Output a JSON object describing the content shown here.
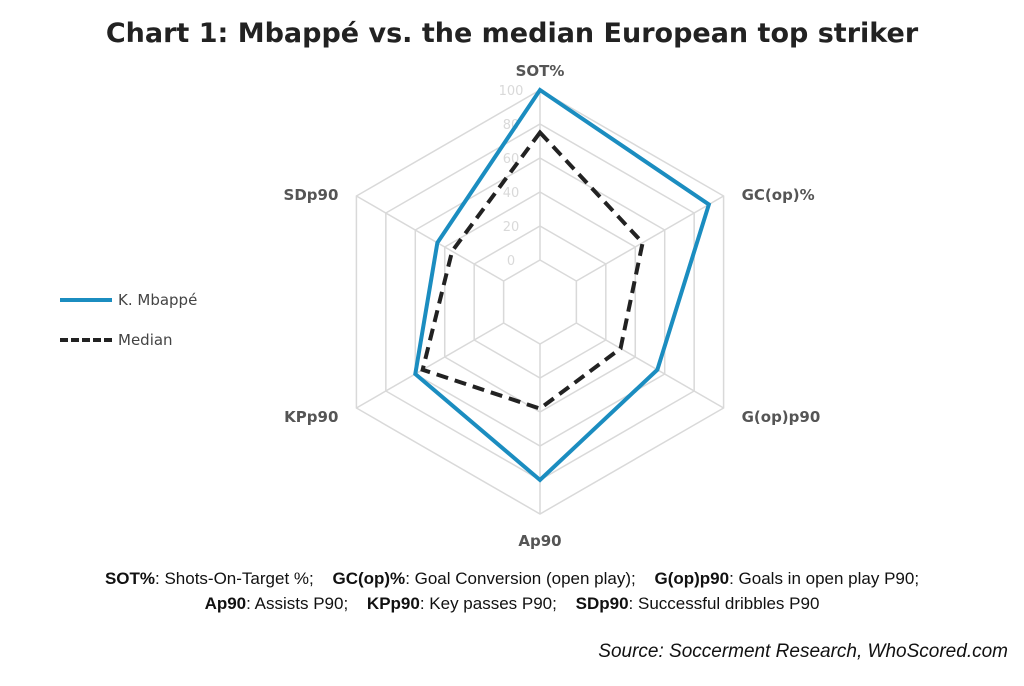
{
  "chart_data": {
    "type": "radar",
    "title": "Chart 1: Mbappé vs. the median European top striker",
    "axes": [
      "SOT%",
      "GC(op)%",
      "G(op)p90",
      "Ap90",
      "KPp90",
      "SDp90"
    ],
    "range": [
      0,
      100
    ],
    "ticks": [
      "0",
      "20",
      "40",
      "60",
      "80",
      "100"
    ],
    "series": [
      {
        "name": "K. Mbappé",
        "values": [
          100,
          90,
          55,
          80,
          60,
          45
        ],
        "color": "#1b8dc0",
        "style": "solid"
      },
      {
        "name": "Median",
        "values": [
          75,
          45,
          30,
          38,
          55,
          35
        ],
        "color": "#222222",
        "style": "dashed"
      }
    ],
    "legend_position": "left",
    "grid": true
  },
  "glossary": [
    [
      {
        "term": "SOT%",
        "def": ": Shots-On-Target %;"
      },
      {
        "term": "GC(op)%",
        "def": ": Goal Conversion (open play);"
      },
      {
        "term": "G(op)p90",
        "def": ": Goals in open play P90;"
      }
    ],
    [
      {
        "term": "Ap90",
        "def": ": Assists P90;"
      },
      {
        "term": "KPp90",
        "def": ": Key passes P90;"
      },
      {
        "term": "SDp90",
        "def": ": Successful dribbles P90"
      }
    ]
  ],
  "source": "Source: Soccerment Research, WhoScored.com"
}
